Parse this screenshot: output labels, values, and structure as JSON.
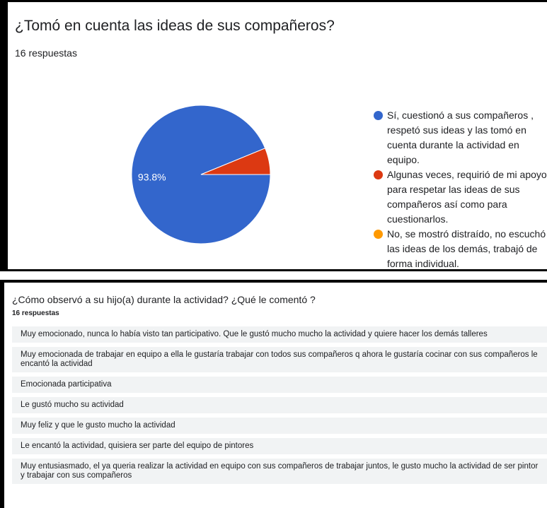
{
  "chart_data": {
    "type": "pie",
    "title": "¿Tomó en cuenta las ideas de sus compañeros?",
    "subtitle": "16 respuestas",
    "series": [
      {
        "name": "Sí, cuestionó a sus compañeros , respetó sus ideas y las tomó en cuenta durante la actividad en equipo.",
        "color": "#3366cc"
      },
      {
        "name": "Algunas veces, requirió de mi apoyo para respetar las ideas de sus compañeros así como para cuestionarlos.",
        "color": "#dc3912"
      },
      {
        "name": "No, se mostró distraído, no escuchó las ideas de los demás, trabajó de forma individual.",
        "color": "#ff9900"
      }
    ],
    "values": [
      93.8,
      6.2,
      0
    ],
    "value_labels": [
      "93.8%",
      null,
      null
    ],
    "legend": "right"
  },
  "responses_panel": {
    "title": "¿Cómo observó a su hijo(a) durante la actividad? ¿Qué le comentó ?",
    "subtitle": "16 respuestas",
    "responses": [
      "Muy emocionado, nunca lo había visto tan participativo. Que le gustó mucho mucho la actividad y quiere hacer los demás talleres",
      "Muy emocionada de trabajar en equipo a ella le gustaría trabajar con todos sus compañeros q ahora le gustaría cocinar con sus compañeros le encantó la actividad",
      "Emocionada participativa",
      "Le gustó mucho su actividad",
      "Muy feliz y que le gusto mucho la actividad",
      "Le encantó la actividad, quisiera ser parte del equipo de pintores",
      "Muy entusiasmado, el ya queria realizar la actividad en equipo con sus compañeros de trabajar juntos, le gusto mucho la actividad de ser pintor y trabajar con sus compañeros"
    ]
  }
}
